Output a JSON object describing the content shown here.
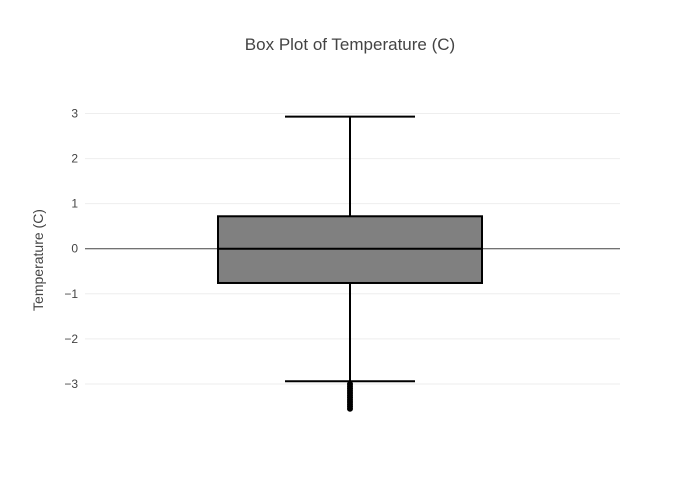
{
  "chart_data": {
    "type": "box",
    "title": "Box Plot of Temperature (C)",
    "xlabel": "",
    "ylabel": "Temperature (C)",
    "ylim": [
      -3.8,
      3.3
    ],
    "y_ticks": [
      3,
      2,
      1,
      0,
      -1,
      -2,
      -3
    ],
    "y_tick_labels": [
      "3",
      "2",
      "1",
      "0",
      "−1",
      "−2",
      "−3"
    ],
    "grid": true,
    "legend": "none",
    "box": {
      "upper_whisker": 2.93,
      "q3": 0.72,
      "median": 0.0,
      "q1": -0.76,
      "lower_whisker": -2.94,
      "outliers": [
        -3.0,
        -3.05,
        -3.1,
        -3.15,
        -3.2,
        -3.25,
        -3.3,
        -3.35,
        -3.4,
        -3.45,
        -3.5,
        -3.55
      ],
      "fill_color": "#808080",
      "line_color": "#000000"
    }
  }
}
